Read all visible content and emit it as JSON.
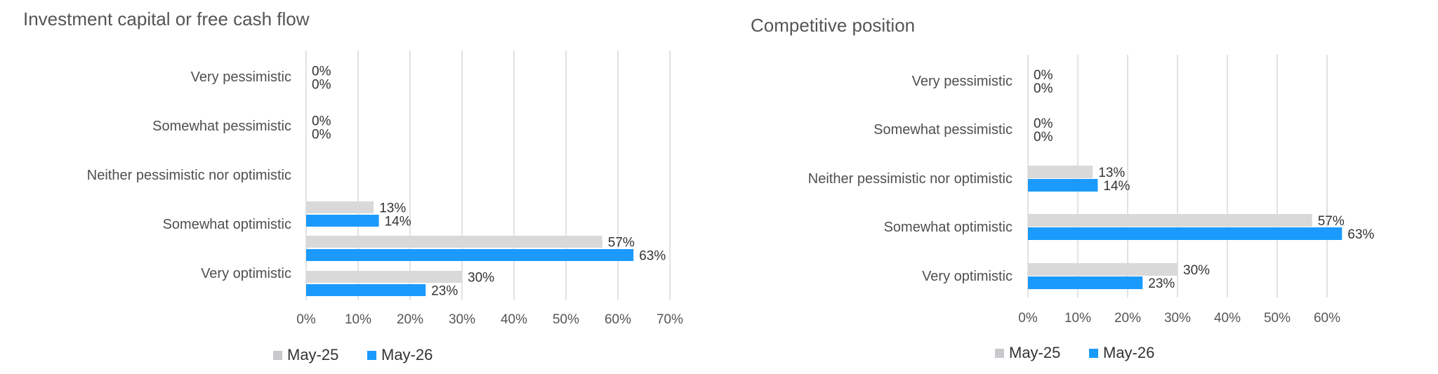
{
  "colors": {
    "series_a": "#d9d9d9",
    "series_b": "#1a9afc",
    "legend_a": "#c8c8cd",
    "grid": "#d9d9d9"
  },
  "chart_data": [
    {
      "type": "bar",
      "orientation": "horizontal",
      "title": "Investment capital or free cash flow",
      "categories": [
        "Very pessimistic",
        "Somewhat pessimistic",
        "Neither pessimistic nor optimistic",
        "Somewhat optimistic",
        "Very optimistic"
      ],
      "series": [
        {
          "name": "May-25",
          "values": [
            0,
            0,
            null,
            13,
            30
          ]
        },
        {
          "name": "May-26",
          "values": [
            0,
            0,
            null,
            14,
            23
          ]
        }
      ],
      "extra_bars": [
        {
          "series": "May-25",
          "value": 57
        },
        {
          "series": "May-26",
          "value": 63
        }
      ],
      "xlim": [
        0,
        70
      ],
      "xticks": [
        "0%",
        "10%",
        "20%",
        "30%",
        "40%",
        "50%",
        "60%",
        "70%"
      ],
      "grid": true,
      "legend": "bottom"
    },
    {
      "type": "bar",
      "orientation": "horizontal",
      "title": "Competitive position",
      "categories": [
        "Very pessimistic",
        "Somewhat pessimistic",
        "Neither pessimistic nor optimistic",
        "Somewhat optimistic",
        "Very optimistic"
      ],
      "series": [
        {
          "name": "May-25",
          "values": [
            0,
            0,
            13,
            57,
            30
          ]
        },
        {
          "name": "May-26",
          "values": [
            0,
            0,
            14,
            63,
            23
          ]
        }
      ],
      "xlim": [
        0,
        60
      ],
      "xticks": [
        "0%",
        "10%",
        "20%",
        "30%",
        "40%",
        "50%",
        "60%"
      ],
      "grid": true,
      "legend": "bottom"
    }
  ]
}
